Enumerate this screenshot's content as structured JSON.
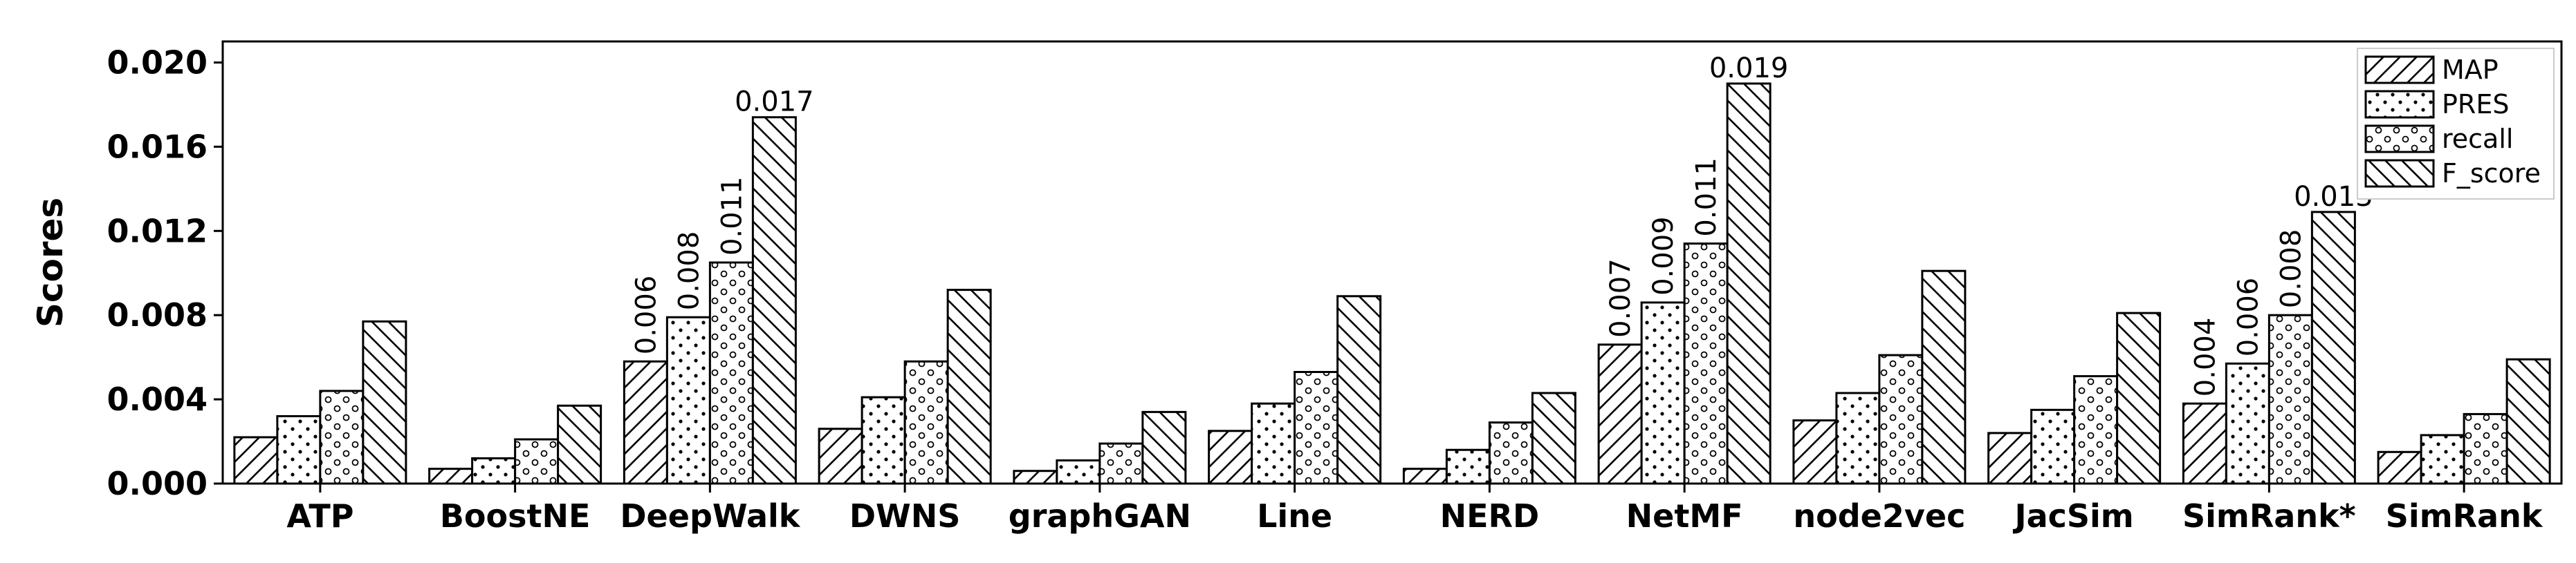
{
  "chart_data": {
    "type": "bar",
    "title": "",
    "xlabel": "",
    "ylabel": "Scores",
    "ylim": [
      0,
      0.021
    ],
    "yticks": [
      "0.000",
      "0.004",
      "0.008",
      "0.012",
      "0.016",
      "0.020"
    ],
    "ytick_values": [
      0,
      0.004,
      0.008,
      0.012,
      0.016,
      0.02
    ],
    "grid": false,
    "legend_position": "top-right",
    "categories": [
      "ATP",
      "BoostNE",
      "DeepWalk",
      "DWNS",
      "graphGAN",
      "Line",
      "NERD",
      "NetMF",
      "node2vec",
      "JacSim",
      "SimRank*",
      "SimRank"
    ],
    "series": [
      {
        "name": "MAP",
        "pattern": "diag-right",
        "values": [
          0.0022,
          0.0007,
          0.0058,
          0.0026,
          0.0006,
          0.0025,
          0.0007,
          0.0066,
          0.003,
          0.0024,
          0.0038,
          0.0015
        ]
      },
      {
        "name": "PRES",
        "pattern": "dots",
        "values": [
          0.0032,
          0.0012,
          0.0079,
          0.0041,
          0.0011,
          0.0038,
          0.0016,
          0.0086,
          0.0043,
          0.0035,
          0.0057,
          0.0023
        ]
      },
      {
        "name": "recall",
        "pattern": "circles",
        "values": [
          0.0044,
          0.0021,
          0.0105,
          0.0058,
          0.0019,
          0.0053,
          0.0029,
          0.0114,
          0.0061,
          0.0051,
          0.008,
          0.0033
        ]
      },
      {
        "name": "F_score",
        "pattern": "diag-left",
        "values": [
          0.0077,
          0.0037,
          0.0174,
          0.0092,
          0.0034,
          0.0089,
          0.0043,
          0.019,
          0.0101,
          0.0081,
          0.0129,
          0.0059
        ]
      }
    ],
    "annotations": [
      {
        "category": "DeepWalk",
        "series": "MAP",
        "text": "0.006",
        "rotated": true
      },
      {
        "category": "DeepWalk",
        "series": "PRES",
        "text": "0.008",
        "rotated": true
      },
      {
        "category": "DeepWalk",
        "series": "recall",
        "text": "0.011",
        "rotated": true
      },
      {
        "category": "DeepWalk",
        "series": "F_score",
        "text": "0.017",
        "rotated": false
      },
      {
        "category": "NetMF",
        "series": "MAP",
        "text": "0.007",
        "rotated": true
      },
      {
        "category": "NetMF",
        "series": "PRES",
        "text": "0.009",
        "rotated": true
      },
      {
        "category": "NetMF",
        "series": "recall",
        "text": "0.011",
        "rotated": true
      },
      {
        "category": "NetMF",
        "series": "F_score",
        "text": "0.019",
        "rotated": false
      },
      {
        "category": "SimRank*",
        "series": "MAP",
        "text": "0.004",
        "rotated": true
      },
      {
        "category": "SimRank*",
        "series": "PRES",
        "text": "0.006",
        "rotated": true
      },
      {
        "category": "SimRank*",
        "series": "recall",
        "text": "0.008",
        "rotated": true
      },
      {
        "category": "SimRank*",
        "series": "F_score",
        "text": "0.013",
        "rotated": false
      }
    ]
  }
}
